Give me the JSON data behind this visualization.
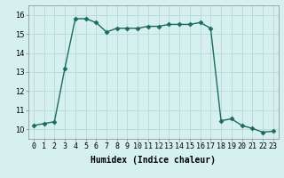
{
  "x": [
    0,
    1,
    2,
    3,
    4,
    5,
    6,
    7,
    8,
    9,
    10,
    11,
    12,
    13,
    14,
    15,
    16,
    17,
    18,
    19,
    20,
    21,
    22,
    23
  ],
  "y": [
    10.2,
    10.3,
    10.4,
    13.2,
    15.8,
    15.8,
    15.6,
    15.1,
    15.3,
    15.3,
    15.3,
    15.4,
    15.4,
    15.5,
    15.5,
    15.5,
    15.6,
    15.3,
    10.45,
    10.55,
    10.2,
    10.05,
    9.85,
    9.9
  ],
  "line_color": "#1a6b60",
  "marker_color": "#1a6b60",
  "bg_color": "#d6f0ef",
  "grid_color": "#b8d8d8",
  "xlabel": "Humidex (Indice chaleur)",
  "xlim": [
    -0.5,
    23.5
  ],
  "ylim": [
    9.5,
    16.5
  ],
  "yticks": [
    10,
    11,
    12,
    13,
    14,
    15,
    16
  ],
  "xticks": [
    0,
    1,
    2,
    3,
    4,
    5,
    6,
    7,
    8,
    9,
    10,
    11,
    12,
    13,
    14,
    15,
    16,
    17,
    18,
    19,
    20,
    21,
    22,
    23
  ],
  "xtick_labels": [
    "0",
    "1",
    "2",
    "3",
    "4",
    "5",
    "6",
    "7",
    "8",
    "9",
    "10",
    "11",
    "12",
    "13",
    "14",
    "15",
    "16",
    "17",
    "18",
    "19",
    "20",
    "21",
    "22",
    "23"
  ],
  "marker_size": 2.5,
  "line_width": 1.0,
  "xlabel_fontsize": 7,
  "tick_fontsize": 6
}
